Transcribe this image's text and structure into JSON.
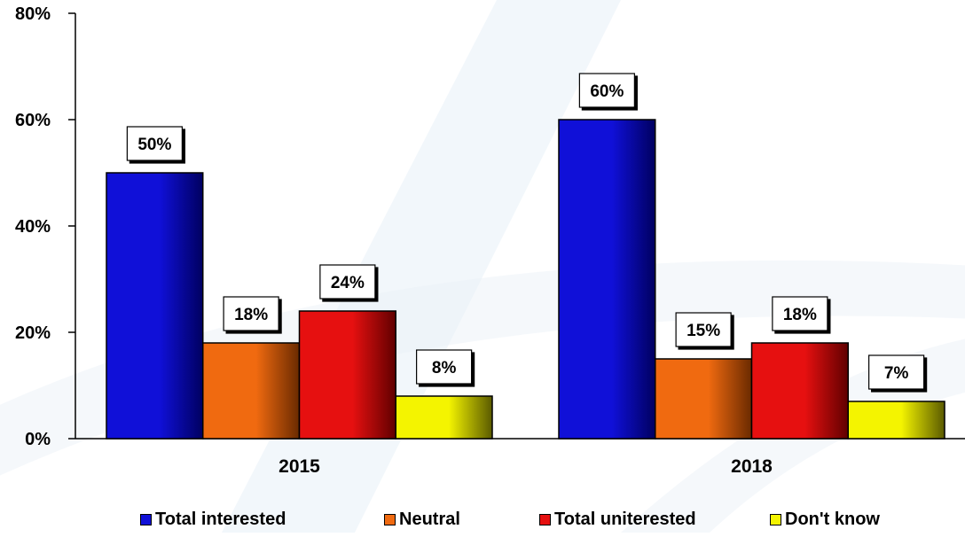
{
  "chart_data": {
    "type": "bar",
    "categories": [
      "2015",
      "2018"
    ],
    "series": [
      {
        "name": "Total interested",
        "values": [
          50,
          60
        ],
        "labels": [
          "50%",
          "60%"
        ]
      },
      {
        "name": "Neutral",
        "values": [
          18,
          15
        ],
        "labels": [
          "18%",
          "15%"
        ]
      },
      {
        "name": "Total uniterested",
        "values": [
          24,
          18
        ],
        "labels": [
          "24%",
          "18%"
        ]
      },
      {
        "name": "Don't know",
        "values": [
          8,
          7
        ],
        "labels": [
          "8%",
          "7%"
        ]
      }
    ],
    "ylim": [
      0,
      80
    ],
    "yticks": [
      "0%",
      "20%",
      "40%",
      "60%",
      "80%"
    ],
    "title": "",
    "xlabel": "",
    "ylabel": "",
    "legend_position": "bottom",
    "grid": false
  },
  "colors": {
    "series": [
      "#1010d8",
      "#f06a10",
      "#e61010",
      "#f4f400"
    ],
    "series_dark": [
      "#000060",
      "#6a2a00",
      "#600000",
      "#5a5a00"
    ],
    "background_stripe": "#e8f0f7"
  },
  "legend": {
    "items": [
      "Total interested",
      "Neutral",
      "Total uniterested",
      "Don't know"
    ]
  }
}
